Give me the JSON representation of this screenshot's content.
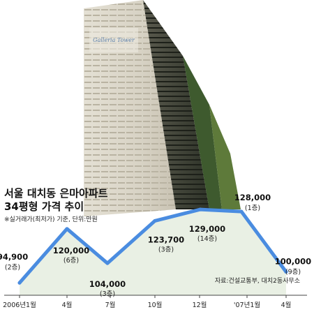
{
  "title_line1": "서울 대치동 은마아파트",
  "title_line2": "34평형 가격 추이",
  "note": "※실거래가(최저가) 기준, 단위:만원",
  "source": "자료:건설교통부, 대치2동사무소",
  "building_sign": "Galleria Tower",
  "colors": {
    "line": "#4a8ce0",
    "area": "#e9f0e4",
    "axis": "#444444"
  },
  "chart_data": {
    "type": "area",
    "title": "서울 대치동 은마아파트 34평형 가격 추이",
    "xlabel": "",
    "ylabel": "",
    "unit": "만원",
    "categories": [
      "2006년1월",
      "4월",
      "7월",
      "10월",
      "12월",
      "'07년1월",
      "4월"
    ],
    "points": [
      {
        "label": "94,900",
        "value": 94900,
        "floor": "(2층)"
      },
      {
        "label": "120,000",
        "value": 120000,
        "floor": "(6층)"
      },
      {
        "label": "104,000",
        "value": 104000,
        "floor": "(3층)"
      },
      {
        "label": "123,700",
        "value": 123700,
        "floor": "(3층)"
      },
      {
        "label": "129,000",
        "value": 129000,
        "floor": "(14층)"
      },
      {
        "label": "128,000",
        "value": 128000,
        "floor": "(1층)"
      },
      {
        "label": "100,000",
        "value": 100000,
        "floor": "(9층)"
      }
    ],
    "grid": false,
    "legend": "none"
  }
}
